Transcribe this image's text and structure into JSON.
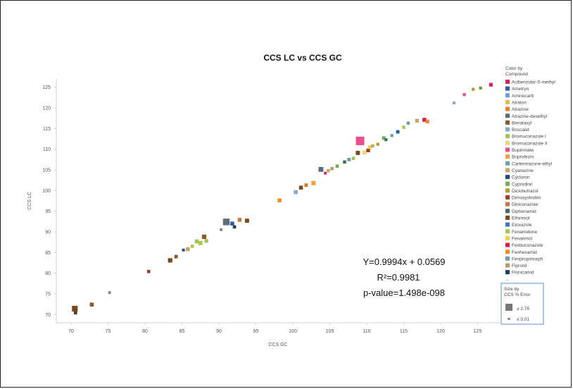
{
  "chart_data": {
    "type": "scatter",
    "title": "CCS LC vs CCS GC",
    "xlabel": "CCS GC",
    "ylabel": "CCS LC",
    "xlim": [
      68,
      128
    ],
    "ylim": [
      68,
      127
    ],
    "xticks": [
      70,
      75,
      80,
      85,
      90,
      95,
      100,
      105,
      110,
      115,
      120,
      125
    ],
    "yticks": [
      70,
      75,
      80,
      85,
      90,
      95,
      100,
      105,
      110,
      115,
      120,
      125
    ],
    "grid": false,
    "annotations": [
      "Y=0.9994x + 0.0569",
      "R²=0.9981",
      "p-value=1.498e-098"
    ],
    "legend": {
      "color_title": [
        "Color by",
        "Compound"
      ],
      "placement": "right",
      "compounds": [
        {
          "name": "Acibenzolar-S-methyl",
          "color": "#d6245f"
        },
        {
          "name": "Ametryn",
          "color": "#2b5f9e"
        },
        {
          "name": "Aminocarb",
          "color": "#6c9bd6"
        },
        {
          "name": "Atraton",
          "color": "#e0b84c"
        },
        {
          "name": "Atrazine",
          "color": "#e37f2c"
        },
        {
          "name": "Atrazine-desethyl",
          "color": "#5e6e78"
        },
        {
          "name": "Benalaxyl",
          "color": "#8a5a2b"
        },
        {
          "name": "Boscalid",
          "color": "#8aa8c8"
        },
        {
          "name": "Bromuconazole I",
          "color": "#9fc45a"
        },
        {
          "name": "Bromuconazole II",
          "color": "#e8d77a"
        },
        {
          "name": "Bupirimate",
          "color": "#e84f8c"
        },
        {
          "name": "Buprofezin",
          "color": "#f0a040"
        },
        {
          "name": "Carfentrazone-ethyl",
          "color": "#6f9fae"
        },
        {
          "name": "Cyanazine",
          "color": "#c9a56a"
        },
        {
          "name": "Cycluron",
          "color": "#1f4e79"
        },
        {
          "name": "Cyprodinil",
          "color": "#6fae4a"
        },
        {
          "name": "Diclobutrazol",
          "color": "#b59a2e"
        },
        {
          "name": "Dimoxystrobin",
          "color": "#a23b2e"
        },
        {
          "name": "Diniconazole",
          "color": "#c87a3c"
        },
        {
          "name": "Diphenamid",
          "color": "#3f6e5a"
        },
        {
          "name": "Ethirimol",
          "color": "#7a4a1e"
        },
        {
          "name": "Etoxazole",
          "color": "#3d78c2"
        },
        {
          "name": "Fenamidone",
          "color": "#a6c94c"
        },
        {
          "name": "Fenarimol",
          "color": "#ecd24a"
        },
        {
          "name": "Fenbuconazole",
          "color": "#d81b4a"
        },
        {
          "name": "Fenhexamid",
          "color": "#f08c2a"
        },
        {
          "name": "Fenpropimorph",
          "color": "#6fa0a0"
        },
        {
          "name": "Fipronil",
          "color": "#b99a6a"
        },
        {
          "name": "Flonicamid",
          "color": "#1b3f5e"
        }
      ],
      "size_title": [
        "Size by",
        "CCS % Error"
      ],
      "size_items": [
        "≥ 2.76",
        "≤ 0.01"
      ]
    },
    "series": [
      {
        "name": "Compounds",
        "points": [
          {
            "x": 70.5,
            "y": 71.4,
            "c": "#7a4a1e",
            "e": 1.6
          },
          {
            "x": 70.6,
            "y": 70.4,
            "c": "#5a3a1a",
            "e": 0.5
          },
          {
            "x": 72.8,
            "y": 72.4,
            "c": "#8a5a2b",
            "e": 0.8
          },
          {
            "x": 75.2,
            "y": 75.3,
            "c": "#888888",
            "e": 0.3
          },
          {
            "x": 80.5,
            "y": 80.4,
            "c": "#a23b2e",
            "e": 0.5
          },
          {
            "x": 83.4,
            "y": 83.1,
            "c": "#7a4a1e",
            "e": 1.0
          },
          {
            "x": 84.2,
            "y": 84.0,
            "c": "#8a5a2b",
            "e": 0.6
          },
          {
            "x": 85.2,
            "y": 85.6,
            "c": "#1f4e79",
            "e": 0.3
          },
          {
            "x": 85.8,
            "y": 85.8,
            "c": "#c9a56a",
            "e": 0.8
          },
          {
            "x": 86.4,
            "y": 86.5,
            "c": "#a6c94c",
            "e": 0.5
          },
          {
            "x": 87.0,
            "y": 87.7,
            "c": "#9fc45a",
            "e": 0.8
          },
          {
            "x": 87.5,
            "y": 87.3,
            "c": "#a6c94c",
            "e": 0.9
          },
          {
            "x": 88.0,
            "y": 88.8,
            "c": "#8a5a2b",
            "e": 1.0
          },
          {
            "x": 88.3,
            "y": 87.8,
            "c": "#9fc45a",
            "e": 0.7
          },
          {
            "x": 90.3,
            "y": 90.5,
            "c": "#888888",
            "e": 0.3
          },
          {
            "x": 91.0,
            "y": 92.4,
            "c": "#5e6e78",
            "e": 2.0
          },
          {
            "x": 91.8,
            "y": 92.0,
            "c": "#2b5f9e",
            "e": 0.8
          },
          {
            "x": 92.1,
            "y": 91.2,
            "c": "#1b3f5e",
            "e": 0.5
          },
          {
            "x": 92.8,
            "y": 92.9,
            "c": "#c87a3c",
            "e": 0.8
          },
          {
            "x": 93.8,
            "y": 92.7,
            "c": "#7a4a1e",
            "e": 0.9
          },
          {
            "x": 98.2,
            "y": 97.6,
            "c": "#f08c2a",
            "e": 0.8
          },
          {
            "x": 100.4,
            "y": 99.6,
            "c": "#8aa8c8",
            "e": 0.8
          },
          {
            "x": 101.1,
            "y": 100.7,
            "c": "#7a4a1e",
            "e": 0.8
          },
          {
            "x": 101.8,
            "y": 101.3,
            "c": "#c87a3c",
            "e": 0.6
          },
          {
            "x": 102.8,
            "y": 101.8,
            "c": "#f0a040",
            "e": 1.0
          },
          {
            "x": 103.8,
            "y": 105.1,
            "c": "#5e6e78",
            "e": 1.2
          },
          {
            "x": 104.4,
            "y": 104.2,
            "c": "#d6245f",
            "e": 0.3
          },
          {
            "x": 104.8,
            "y": 104.8,
            "c": "#c9a56a",
            "e": 0.5
          },
          {
            "x": 105.3,
            "y": 105.3,
            "c": "#b99a6a",
            "e": 0.5
          },
          {
            "x": 106.0,
            "y": 105.9,
            "c": "#6fae4a",
            "e": 0.5
          },
          {
            "x": 107.0,
            "y": 106.9,
            "c": "#3f6e5a",
            "e": 0.5
          },
          {
            "x": 107.6,
            "y": 107.5,
            "c": "#6fa0a0",
            "e": 0.6
          },
          {
            "x": 108.2,
            "y": 107.8,
            "c": "#9fc45a",
            "e": 0.5
          },
          {
            "x": 108.8,
            "y": 109.1,
            "c": "#7a4a1e",
            "e": 0.9
          },
          {
            "x": 109.1,
            "y": 112.0,
            "c": "#e84f8c",
            "e": 2.8
          },
          {
            "x": 109.7,
            "y": 109.2,
            "c": "#e8d77a",
            "e": 0.9
          },
          {
            "x": 110.2,
            "y": 109.7,
            "c": "#a23b2e",
            "e": 0.7
          },
          {
            "x": 110.4,
            "y": 110.5,
            "c": "#ecd24a",
            "e": 0.6
          },
          {
            "x": 110.8,
            "y": 110.8,
            "c": "#c9a56a",
            "e": 0.5
          },
          {
            "x": 111.5,
            "y": 111.2,
            "c": "#b59a2e",
            "e": 0.4
          },
          {
            "x": 112.3,
            "y": 112.7,
            "c": "#6fae4a",
            "e": 0.6
          },
          {
            "x": 112.6,
            "y": 112.3,
            "c": "#3f6e5a",
            "e": 0.4
          },
          {
            "x": 113.4,
            "y": 113.3,
            "c": "#6f9fae",
            "e": 0.4
          },
          {
            "x": 114.2,
            "y": 114.2,
            "c": "#2b5f9e",
            "e": 0.6
          },
          {
            "x": 115.0,
            "y": 115.3,
            "c": "#a6c94c",
            "e": 0.5
          },
          {
            "x": 115.6,
            "y": 116.3,
            "c": "#6fa0a0",
            "e": 0.5
          },
          {
            "x": 116.8,
            "y": 116.9,
            "c": "#c9a56a",
            "e": 0.7
          },
          {
            "x": 117.8,
            "y": 117.1,
            "c": "#d81b4a",
            "e": 0.8
          },
          {
            "x": 118.2,
            "y": 116.7,
            "c": "#f08c2a",
            "e": 0.7
          },
          {
            "x": 121.8,
            "y": 121.2,
            "c": "#8aa8c8",
            "e": 0.3
          },
          {
            "x": 123.2,
            "y": 123.2,
            "c": "#e84f8c",
            "e": 0.4
          },
          {
            "x": 124.4,
            "y": 124.5,
            "c": "#b59a2e",
            "e": 0.4
          },
          {
            "x": 125.4,
            "y": 124.8,
            "c": "#8a8a4a",
            "e": 0.4
          },
          {
            "x": 126.8,
            "y": 125.6,
            "c": "#d6245f",
            "e": 0.7
          }
        ]
      }
    ]
  }
}
